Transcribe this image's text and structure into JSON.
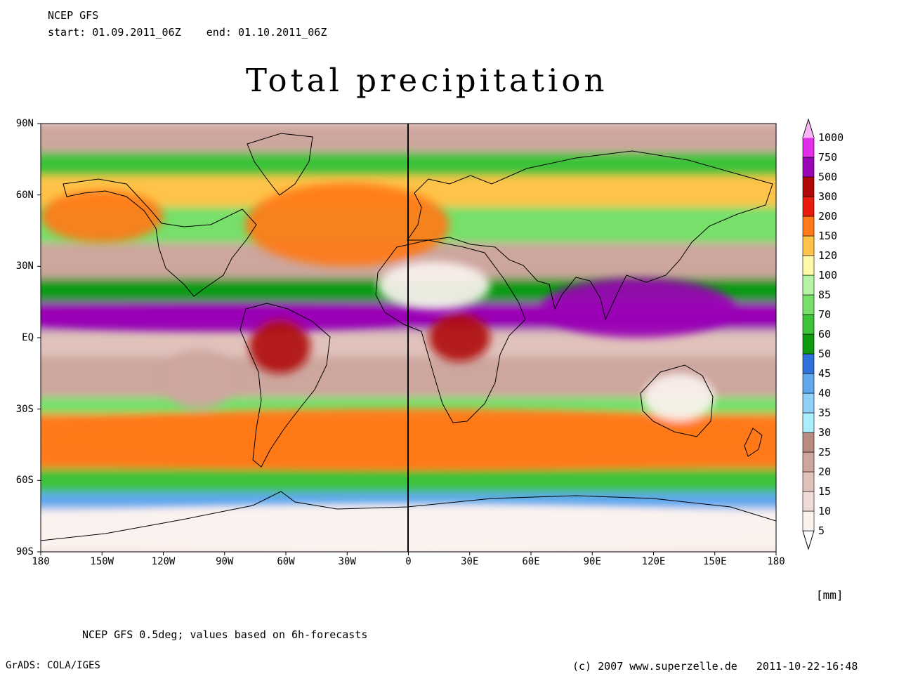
{
  "header": {
    "model": "NCEP GFS",
    "start_label": "start:",
    "start": "01.09.2011_06Z",
    "end_label": "end:",
    "end": "01.10.2011_06Z"
  },
  "title": "Total precipitation",
  "map": {
    "projection": "equirectangular",
    "lon_range": [
      -180,
      180
    ],
    "lat_range": [
      -90,
      90
    ],
    "lat_ticks": [
      "90N",
      "60N",
      "30N",
      "EQ",
      "30S",
      "60S",
      "90S"
    ],
    "lon_ticks": [
      "180",
      "150W",
      "120W",
      "90W",
      "60W",
      "30W",
      "0",
      "30E",
      "60E",
      "90E",
      "120E",
      "150E",
      "180"
    ],
    "field": "precipitation accumulation",
    "zones": [
      {
        "name": "itcz-pacific-atlantic",
        "lon": [
          -180,
          -5
        ],
        "lat": [
          3,
          12
        ],
        "value": 500
      },
      {
        "name": "asia-monsoon",
        "lon": [
          65,
          160
        ],
        "lat": [
          0,
          25
        ],
        "value": 500
      },
      {
        "name": "central-africa-rain",
        "lon": [
          10,
          40
        ],
        "lat": [
          -10,
          10
        ],
        "value": 300
      },
      {
        "name": "amazon-rain",
        "lon": [
          -78,
          -48
        ],
        "lat": [
          -15,
          8
        ],
        "value": 300
      },
      {
        "name": "north-atlantic-storm-track",
        "lon": [
          -80,
          20
        ],
        "lat": [
          30,
          65
        ],
        "value": 150
      },
      {
        "name": "north-pacific-storm-track",
        "lon": [
          -180,
          -120
        ],
        "lat": [
          40,
          62
        ],
        "value": 150
      },
      {
        "name": "southern-ocean-storm-track",
        "lon": [
          -180,
          180
        ],
        "lat": [
          -55,
          -30
        ],
        "value": 150
      },
      {
        "name": "sahara-dry",
        "lon": [
          -15,
          40
        ],
        "lat": [
          12,
          32
        ],
        "value": 5
      },
      {
        "name": "southeast-pacific-dry",
        "lon": [
          -120,
          -85
        ],
        "lat": [
          -30,
          -5
        ],
        "value": 20
      },
      {
        "name": "antarctica-dry",
        "lon": [
          -180,
          180
        ],
        "lat": [
          -90,
          -70
        ],
        "value": 5
      },
      {
        "name": "australia-dry",
        "lon": [
          115,
          150
        ],
        "lat": [
          -35,
          -15
        ],
        "value": 5
      }
    ]
  },
  "colorbar": {
    "unit": "[mm]",
    "levels": [
      {
        "label": "5",
        "color": "#fbf2ef"
      },
      {
        "label": "10",
        "color": "#eed9d4"
      },
      {
        "label": "15",
        "color": "#e0c2bb"
      },
      {
        "label": "20",
        "color": "#cda69e"
      },
      {
        "label": "25",
        "color": "#b98a80"
      },
      {
        "label": "30",
        "color": "#a9eefa"
      },
      {
        "label": "35",
        "color": "#8fcff8"
      },
      {
        "label": "40",
        "color": "#5fa8ee"
      },
      {
        "label": "45",
        "color": "#2f72dc"
      },
      {
        "label": "50",
        "color": "#0f9a12"
      },
      {
        "label": "60",
        "color": "#3dc23a"
      },
      {
        "label": "70",
        "color": "#76e06a"
      },
      {
        "label": "85",
        "color": "#b4f4a4"
      },
      {
        "label": "100",
        "color": "#fefaa8"
      },
      {
        "label": "120",
        "color": "#ffc34a"
      },
      {
        "label": "150",
        "color": "#ff7a1a"
      },
      {
        "label": "200",
        "color": "#e81b0e"
      },
      {
        "label": "300",
        "color": "#b00808"
      },
      {
        "label": "500",
        "color": "#9a06b5"
      },
      {
        "label": "750",
        "color": "#e12ee8"
      },
      {
        "label": "1000",
        "color": "#f9b2f8"
      }
    ]
  },
  "footnote": "NCEP GFS 0.5deg; values based on 6h-forecasts",
  "software": "GrADS: COLA/IGES",
  "credit": "(c) 2007 www.superzelle.de",
  "timestamp": "2011-10-22-16:48"
}
